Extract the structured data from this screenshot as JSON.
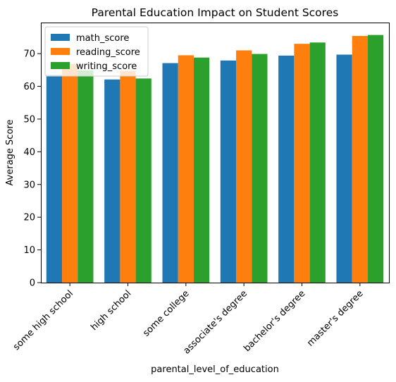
{
  "chart_data": {
    "type": "bar",
    "title": "Parental Education Impact on Student Scores",
    "xlabel": "parental_level_of_education",
    "ylabel": "Average Score",
    "categories": [
      "some high school",
      "high school",
      "some college",
      "associate's degree",
      "bachelor's degree",
      "master's degree"
    ],
    "series": [
      {
        "name": "math_score",
        "color": "#1f77b4",
        "values": [
          63.5,
          62.1,
          67.1,
          67.9,
          69.4,
          69.7
        ]
      },
      {
        "name": "reading_score",
        "color": "#ff7f0e",
        "values": [
          66.9,
          64.7,
          69.5,
          71.0,
          73.0,
          75.4
        ]
      },
      {
        "name": "writing_score",
        "color": "#2ca02c",
        "values": [
          64.9,
          62.4,
          68.8,
          69.9,
          73.4,
          75.7
        ]
      }
    ],
    "ylim": [
      0,
      79.5
    ],
    "yticks": [
      0,
      10,
      20,
      30,
      40,
      50,
      60,
      70
    ],
    "legend": "upper-left",
    "grid": false
  }
}
